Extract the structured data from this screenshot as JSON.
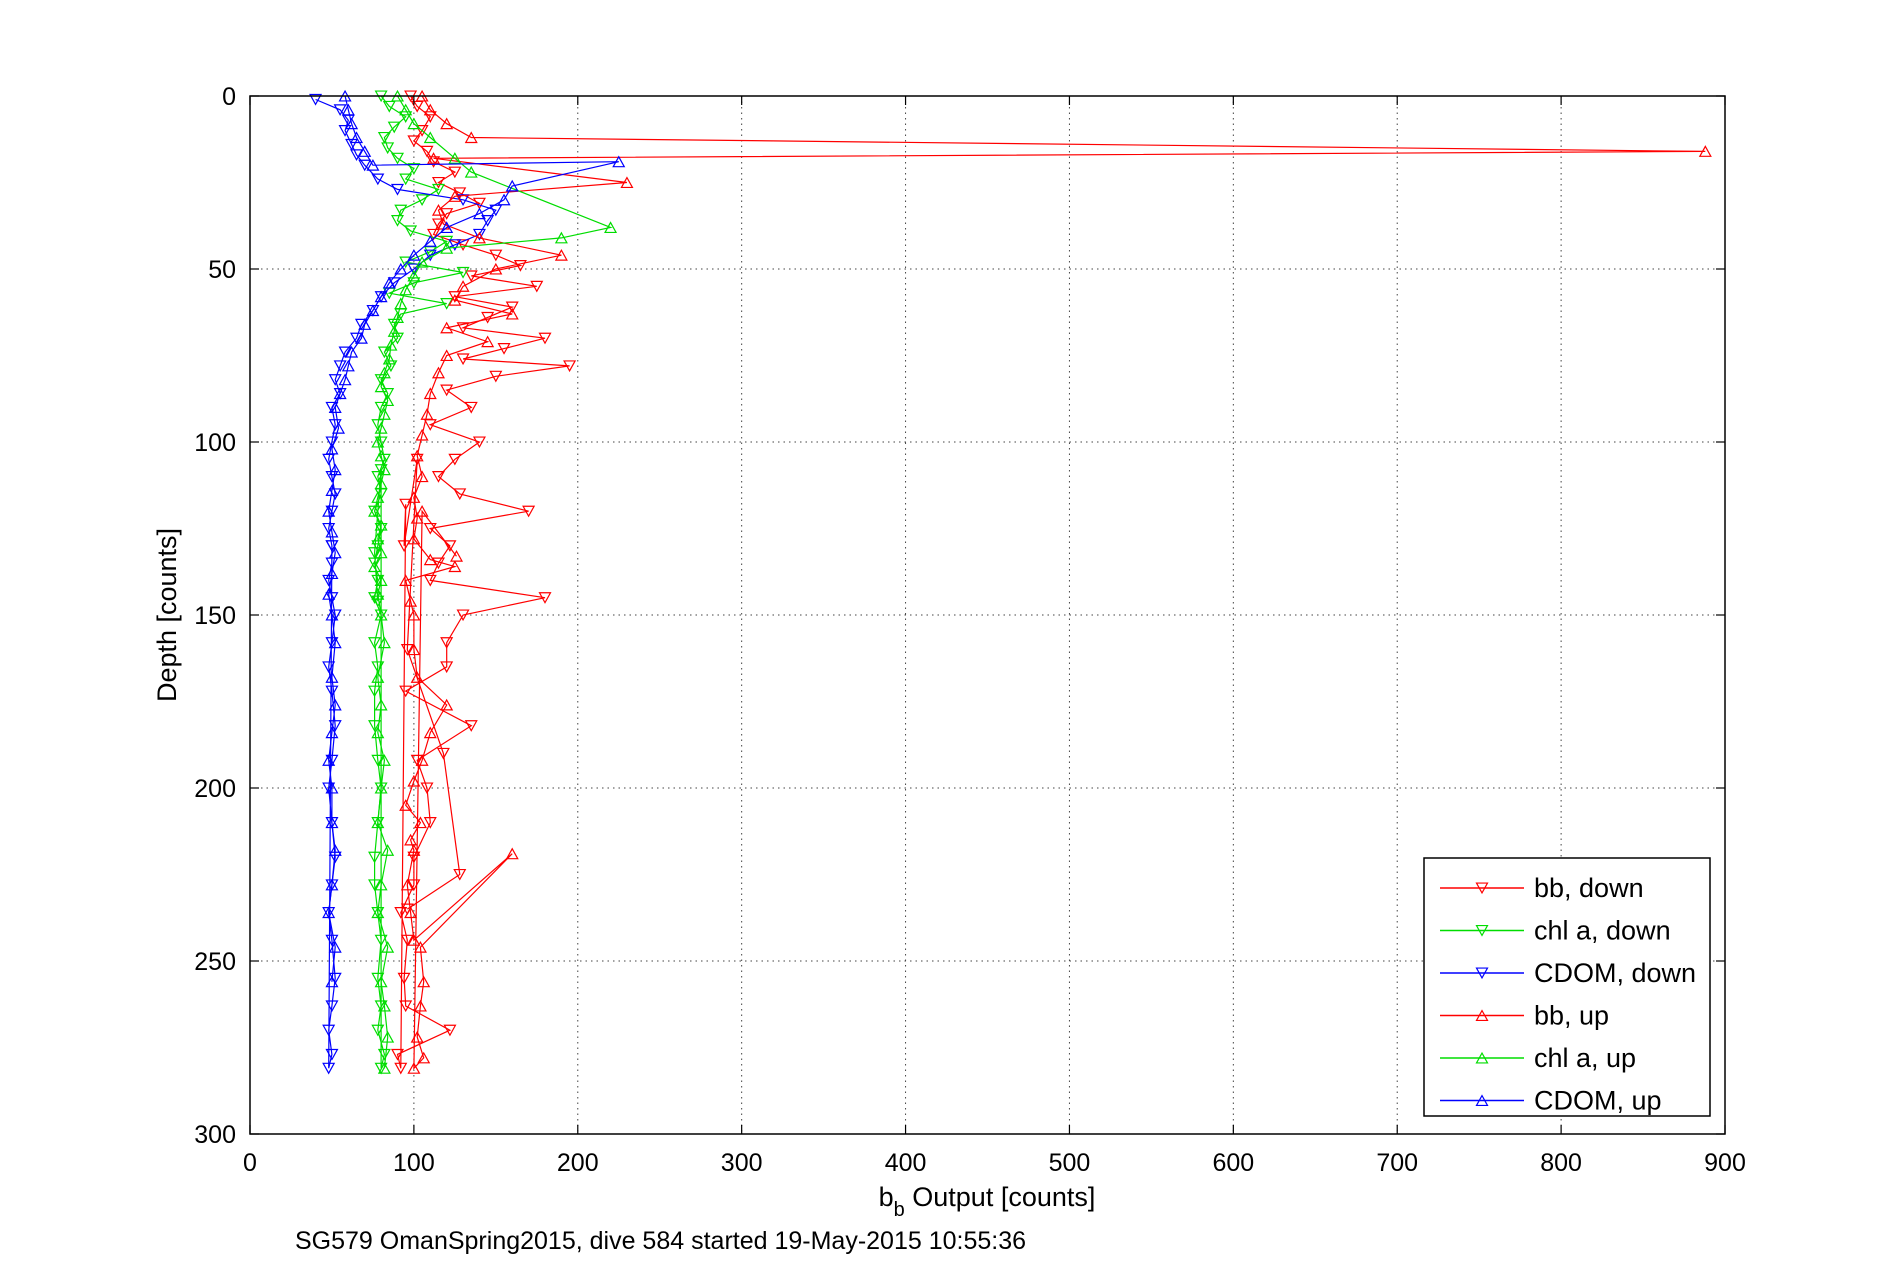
{
  "chart_data": {
    "type": "scatter",
    "xlabel": "b",
    "xlabel_subscript": "b",
    "xlabel_suffix": " Output [counts]",
    "ylabel": "Depth [counts]",
    "caption": "SG579 OmanSpring2015, dive 584 started 19-May-2015 10:55:36",
    "xlim": [
      0,
      900
    ],
    "ylim": [
      0,
      300
    ],
    "y_reversed": true,
    "xticks": [
      0,
      100,
      200,
      300,
      400,
      500,
      600,
      700,
      800,
      900
    ],
    "yticks": [
      0,
      50,
      100,
      150,
      200,
      250,
      300
    ],
    "grid": true,
    "legend_position": "bottom-right",
    "series": [
      {
        "name": "bb, down",
        "color": "#ff0000",
        "marker": "triangle-down",
        "connected": true,
        "x": [
          98,
          102,
          110,
          105,
          100,
          108,
          112,
          125,
          115,
          128,
          140,
          120,
          115,
          112,
          130,
          150,
          165,
          135,
          175,
          125,
          160,
          145,
          130,
          180,
          155,
          130,
          195,
          150,
          120,
          135,
          110,
          140,
          125,
          115,
          128,
          170,
          110,
          122,
          115,
          110,
          180,
          130,
          120,
          120,
          95,
          135,
          102,
          108,
          110,
          100,
          100,
          92,
          96,
          94,
          95,
          122,
          90,
          92,
          95,
          94,
          102,
          96,
          118,
          128,
          96
        ],
        "y": [
          0,
          3,
          6,
          10,
          13,
          16,
          19,
          22,
          25,
          28,
          31,
          34,
          37,
          40,
          43,
          46,
          49,
          52,
          55,
          58,
          61,
          64,
          67,
          70,
          73,
          76,
          78,
          81,
          85,
          90,
          95,
          100,
          105,
          110,
          115,
          120,
          125,
          130,
          135,
          140,
          145,
          150,
          158,
          165,
          172,
          182,
          192,
          200,
          210,
          220,
          228,
          236,
          244,
          255,
          263,
          270,
          277,
          281,
          118,
          130,
          105,
          160,
          190,
          225,
          235
        ]
      },
      {
        "name": "chl a, down",
        "color": "#00dd00",
        "marker": "triangle-down",
        "connected": true,
        "x": [
          80,
          85,
          95,
          88,
          82,
          84,
          90,
          100,
          95,
          115,
          105,
          92,
          90,
          98,
          120,
          110,
          95,
          130,
          100,
          85,
          120,
          92,
          88,
          90,
          82,
          86,
          80,
          84,
          80,
          78,
          80,
          82,
          78,
          80,
          76,
          80,
          78,
          76,
          78,
          76,
          80,
          76,
          78,
          76,
          76,
          78,
          80,
          78,
          76,
          76,
          78,
          80,
          78,
          80,
          78,
          82,
          80,
          80,
          76,
          78
        ],
        "y": [
          0,
          3,
          6,
          9,
          12,
          15,
          18,
          21,
          24,
          27,
          30,
          33,
          36,
          39,
          42,
          45,
          48,
          51,
          54,
          57,
          60,
          63,
          66,
          70,
          74,
          78,
          82,
          86,
          90,
          95,
          100,
          105,
          110,
          115,
          120,
          125,
          130,
          135,
          140,
          145,
          150,
          158,
          165,
          172,
          182,
          192,
          200,
          210,
          220,
          228,
          236,
          244,
          255,
          263,
          270,
          277,
          281,
          108,
          132,
          146
        ]
      },
      {
        "name": "CDOM, down",
        "color": "#0000ff",
        "marker": "triangle-down",
        "connected": true,
        "x": [
          40,
          55,
          60,
          58,
          62,
          65,
          70,
          78,
          90,
          130,
          150,
          145,
          140,
          125,
          110,
          100,
          88,
          80,
          75,
          68,
          65,
          58,
          55,
          52,
          55,
          50,
          52,
          50,
          48,
          50,
          52,
          50,
          48,
          50,
          50,
          48,
          50,
          52,
          50,
          48,
          50,
          52,
          50,
          48,
          50,
          52,
          50,
          48,
          50,
          52,
          50,
          48,
          50,
          48,
          50
        ],
        "y": [
          1,
          4,
          7,
          10,
          14,
          17,
          20,
          24,
          27,
          30,
          33,
          36,
          40,
          43,
          46,
          50,
          54,
          58,
          62,
          66,
          70,
          74,
          78,
          82,
          86,
          90,
          95,
          100,
          105,
          110,
          115,
          120,
          125,
          130,
          135,
          140,
          145,
          150,
          158,
          165,
          172,
          182,
          192,
          200,
          210,
          220,
          228,
          236,
          244,
          255,
          263,
          270,
          277,
          281,
          130
        ]
      },
      {
        "name": "bb, up",
        "color": "#ff0000",
        "marker": "triangle-up",
        "connected": true,
        "x": [
          105,
          110,
          120,
          135,
          888,
          112,
          230,
          125,
          115,
          118,
          140,
          190,
          150,
          130,
          125,
          160,
          120,
          145,
          120,
          115,
          110,
          108,
          105,
          102,
          105,
          100,
          102,
          100,
          110,
          125,
          95,
          98,
          100,
          100,
          102,
          120,
          110,
          105,
          100,
          95,
          104,
          98,
          100,
          96,
          98,
          100,
          160,
          104,
          106,
          104,
          102,
          106,
          100,
          105,
          126
        ],
        "y": [
          0,
          4,
          8,
          12,
          16,
          18,
          25,
          29,
          33,
          37,
          41,
          46,
          50,
          55,
          59,
          63,
          67,
          71,
          75,
          80,
          86,
          92,
          98,
          104,
          110,
          116,
          122,
          128,
          134,
          136,
          140,
          146,
          150,
          160,
          168,
          176,
          184,
          192,
          198,
          205,
          210,
          215,
          218,
          228,
          236,
          244,
          219,
          246,
          256,
          263,
          272,
          278,
          281,
          120,
          133
        ]
      },
      {
        "name": "chl a, up",
        "color": "#00dd00",
        "marker": "triangle-up",
        "connected": true,
        "x": [
          90,
          95,
          100,
          110,
          125,
          135,
          220,
          190,
          120,
          105,
          100,
          95,
          92,
          90,
          88,
          86,
          85,
          82,
          80,
          84,
          82,
          80,
          78,
          80,
          82,
          80,
          78,
          76,
          80,
          78,
          80,
          76,
          80,
          78,
          80,
          82,
          78,
          80,
          78,
          82,
          80,
          78,
          84,
          80,
          78,
          84,
          80,
          82,
          84,
          82
        ],
        "y": [
          0,
          4,
          8,
          12,
          18,
          22,
          38,
          41,
          44,
          48,
          52,
          56,
          60,
          64,
          68,
          72,
          76,
          80,
          84,
          88,
          92,
          96,
          100,
          104,
          108,
          112,
          116,
          120,
          124,
          128,
          132,
          136,
          140,
          144,
          150,
          158,
          168,
          176,
          184,
          192,
          200,
          210,
          218,
          228,
          236,
          246,
          256,
          263,
          272,
          281
        ]
      },
      {
        "name": "CDOM, up",
        "color": "#0000ff",
        "marker": "triangle-up",
        "connected": true,
        "x": [
          58,
          60,
          62,
          65,
          70,
          75,
          225,
          160,
          155,
          140,
          120,
          110,
          100,
          92,
          85,
          80,
          75,
          70,
          68,
          62,
          60,
          58,
          55,
          52,
          54,
          50,
          52,
          50,
          48,
          50,
          52,
          50,
          48,
          50,
          52,
          50,
          52,
          50,
          48,
          50,
          50,
          52,
          50,
          48,
          52,
          50
        ],
        "y": [
          0,
          4,
          8,
          12,
          16,
          20,
          19,
          26,
          30,
          34,
          38,
          42,
          46,
          50,
          54,
          58,
          62,
          66,
          70,
          74,
          78,
          82,
          86,
          90,
          96,
          102,
          108,
          114,
          120,
          126,
          132,
          138,
          144,
          150,
          158,
          168,
          176,
          184,
          192,
          200,
          210,
          218,
          228,
          236,
          246,
          256
        ]
      }
    ]
  }
}
